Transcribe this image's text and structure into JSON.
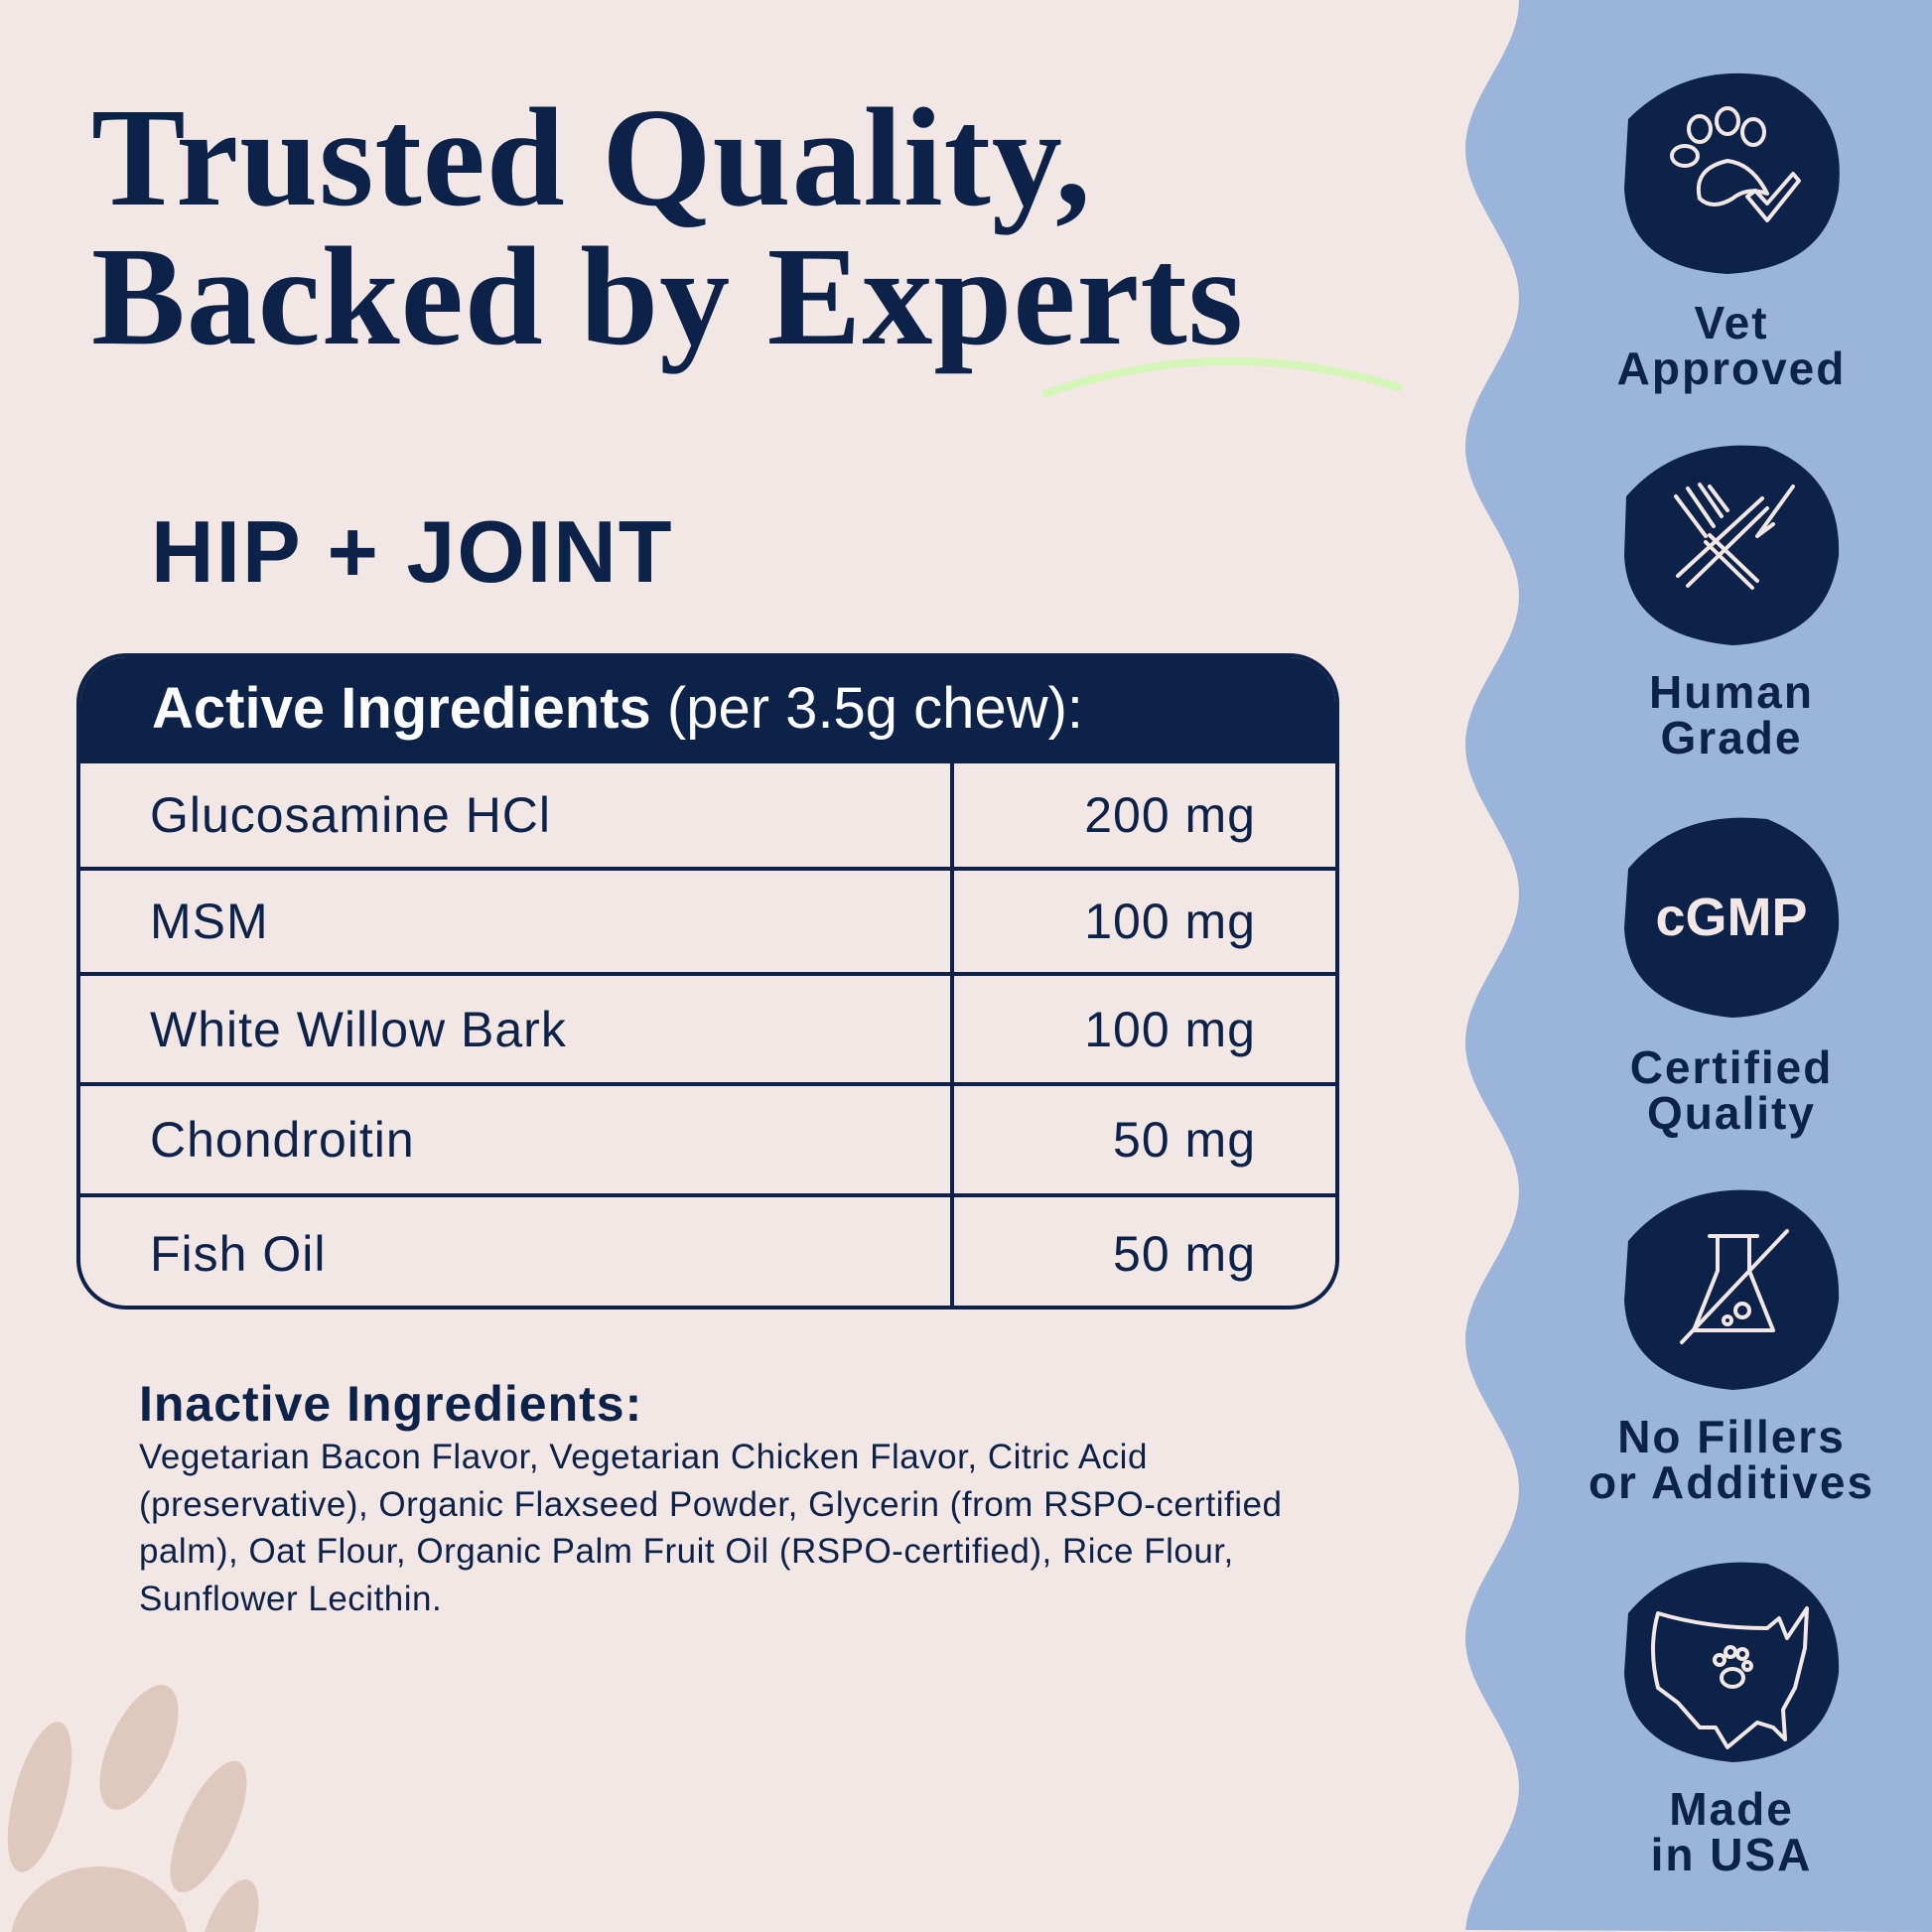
{
  "header": {
    "title_line1": "Trusted Quality,",
    "title_line2": "Backed by Experts"
  },
  "product": {
    "name": "HIP + JOINT"
  },
  "active_table": {
    "header_bold": "Active Ingredients",
    "header_rest": " (per 3.5g chew):",
    "rows": [
      {
        "name": "Glucosamine HCl",
        "amount": "200 mg"
      },
      {
        "name": "MSM",
        "amount": "100 mg"
      },
      {
        "name": "White Willow Bark",
        "amount": "100 mg"
      },
      {
        "name": "Chondroitin",
        "amount": "50 mg"
      },
      {
        "name": "Fish Oil",
        "amount": "50 mg"
      }
    ]
  },
  "inactive": {
    "heading": "Inactive Ingredients:",
    "text": "Vegetarian Bacon Flavor, Vegetarian Chicken Flavor, Citric Acid (preservative), Organic Flaxseed Powder, Glycerin (from RSPO-certified palm), Oat Flour, Organic Palm Fruit Oil (RSPO-certified), Rice Flour, Sunflower Lecithin."
  },
  "badges": [
    {
      "icon": "paw-check-icon",
      "line1": "Vet",
      "line2": "Approved"
    },
    {
      "icon": "fork-knife-icon",
      "line1": "Human",
      "line2": "Grade"
    },
    {
      "icon": "cgmp-icon",
      "icon_text": "cGMP",
      "line1": "Certified",
      "line2": "Quality"
    },
    {
      "icon": "no-flask-icon",
      "line1": "No Fillers",
      "line2": "or Additives"
    },
    {
      "icon": "usa-map-paw-icon",
      "line1": "Made",
      "line2": "in USA"
    }
  ],
  "colors": {
    "background": "#f2e7e4",
    "navy": "#0c2249",
    "panel_blue": "#9ab4da",
    "accent_green": "#d4f5b8",
    "paw_tan": "#dfc9bf"
  }
}
